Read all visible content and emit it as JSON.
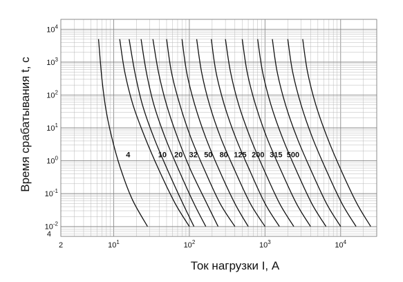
{
  "chart_data": {
    "type": "line",
    "title": "",
    "xlabel": "Ток нагрузки  I, А",
    "ylabel": "Время срабатывания  t, с",
    "x_scale": "log",
    "y_scale": "log",
    "xlim": [
      2,
      30000
    ],
    "ylim": [
      0.005,
      20000
    ],
    "grid": true,
    "x_ticks": [
      {
        "value": 2,
        "label": "2"
      },
      {
        "value": 10,
        "base": "10",
        "exp": "1"
      },
      {
        "value": 100,
        "base": "10",
        "exp": "2"
      },
      {
        "value": 1000,
        "base": "10",
        "exp": "3"
      },
      {
        "value": 10000,
        "base": "10",
        "exp": "4"
      }
    ],
    "y_ticks": [
      {
        "value": 0.01,
        "base": "10",
        "exp": "-2"
      },
      {
        "value": 0.1,
        "base": "10",
        "exp": "-1"
      },
      {
        "value": 1,
        "base": "10",
        "exp": "0"
      },
      {
        "value": 10,
        "base": "10",
        "exp": "1"
      },
      {
        "value": 100,
        "base": "10",
        "exp": "2"
      },
      {
        "value": 1000,
        "base": "10",
        "exp": "3"
      },
      {
        "value": 10000,
        "base": "10",
        "exp": "4"
      }
    ],
    "y_extra_label": {
      "value": 0.006,
      "label": "4"
    },
    "series": [
      {
        "name": "4",
        "points": [
          [
            6.3,
            5000
          ],
          [
            7,
            300
          ],
          [
            8,
            30
          ],
          [
            10,
            3
          ],
          [
            13,
            0.4
          ],
          [
            18,
            0.06
          ],
          [
            28,
            0.01
          ]
        ]
      },
      {
        "name": "10",
        "points": [
          [
            12,
            5000
          ],
          [
            14,
            500
          ],
          [
            18,
            50
          ],
          [
            26,
            5
          ],
          [
            40,
            0.5
          ],
          [
            65,
            0.05
          ],
          [
            100,
            0.01
          ]
        ]
      },
      {
        "name": "20",
        "points": [
          [
            16,
            5000
          ],
          [
            19,
            500
          ],
          [
            24,
            50
          ],
          [
            34,
            5
          ],
          [
            52,
            0.5
          ],
          [
            82,
            0.05
          ],
          [
            115,
            0.01
          ]
        ]
      },
      {
        "name": "32",
        "points": [
          [
            23,
            5000
          ],
          [
            27,
            500
          ],
          [
            34,
            50
          ],
          [
            48,
            5
          ],
          [
            73,
            0.5
          ],
          [
            115,
            0.05
          ],
          [
            165,
            0.01
          ]
        ]
      },
      {
        "name": "50",
        "points": [
          [
            33,
            5000
          ],
          [
            39,
            500
          ],
          [
            50,
            50
          ],
          [
            70,
            5
          ],
          [
            105,
            0.5
          ],
          [
            170,
            0.05
          ],
          [
            240,
            0.01
          ]
        ]
      },
      {
        "name": "80",
        "points": [
          [
            50,
            5000
          ],
          [
            58,
            500
          ],
          [
            75,
            50
          ],
          [
            105,
            5
          ],
          [
            160,
            0.5
          ],
          [
            255,
            0.05
          ],
          [
            400,
            0.01
          ]
        ]
      },
      {
        "name": "125",
        "points": [
          [
            80,
            5000
          ],
          [
            92,
            500
          ],
          [
            118,
            50
          ],
          [
            165,
            5
          ],
          [
            250,
            0.5
          ],
          [
            400,
            0.05
          ],
          [
            600,
            0.01
          ]
        ]
      },
      {
        "name": "200",
        "points": [
          [
            125,
            5000
          ],
          [
            145,
            500
          ],
          [
            185,
            50
          ],
          [
            260,
            5
          ],
          [
            400,
            0.5
          ],
          [
            640,
            0.05
          ],
          [
            1000,
            0.01
          ]
        ]
      },
      {
        "name": "315",
        "points": [
          [
            195,
            5000
          ],
          [
            225,
            500
          ],
          [
            290,
            50
          ],
          [
            410,
            5
          ],
          [
            630,
            0.5
          ],
          [
            1000,
            0.05
          ],
          [
            1550,
            0.01
          ]
        ]
      },
      {
        "name": "500",
        "points": [
          [
            300,
            5000
          ],
          [
            350,
            500
          ],
          [
            450,
            50
          ],
          [
            640,
            5
          ],
          [
            980,
            0.5
          ],
          [
            1560,
            0.05
          ],
          [
            2400,
            0.01
          ]
        ]
      },
      {
        "name": "",
        "points": [
          [
            500,
            5000
          ],
          [
            580,
            500
          ],
          [
            750,
            50
          ],
          [
            1060,
            5
          ],
          [
            1630,
            0.5
          ],
          [
            2600,
            0.05
          ],
          [
            4000,
            0.01
          ]
        ]
      },
      {
        "name": "",
        "points": [
          [
            800,
            5000
          ],
          [
            930,
            500
          ],
          [
            1200,
            50
          ],
          [
            1700,
            5
          ],
          [
            2600,
            0.5
          ],
          [
            4150,
            0.05
          ],
          [
            6400,
            0.01
          ]
        ]
      },
      {
        "name": "",
        "points": [
          [
            1250,
            5000
          ],
          [
            1450,
            500
          ],
          [
            1870,
            50
          ],
          [
            2650,
            5
          ],
          [
            4070,
            0.5
          ],
          [
            6500,
            0.05
          ],
          [
            10000,
            0.01
          ]
        ]
      },
      {
        "name": "",
        "points": [
          [
            2000,
            5000
          ],
          [
            2320,
            500
          ],
          [
            3000,
            50
          ],
          [
            4240,
            5
          ],
          [
            6500,
            0.5
          ],
          [
            10400,
            0.05
          ],
          [
            16000,
            0.01
          ]
        ]
      },
      {
        "name": "",
        "points": [
          [
            3150,
            5000
          ],
          [
            3650,
            500
          ],
          [
            4700,
            50
          ],
          [
            6680,
            5
          ],
          [
            10200,
            0.5
          ],
          [
            16400,
            0.05
          ],
          [
            25000,
            0.01
          ]
        ]
      }
    ],
    "curve_labels": [
      {
        "text": "4",
        "x": 15.5,
        "y": 1.55
      },
      {
        "text": "10",
        "x": 44,
        "y": 1.55
      },
      {
        "text": "20",
        "x": 72,
        "y": 1.55
      },
      {
        "text": "32",
        "x": 113,
        "y": 1.55
      },
      {
        "text": "50",
        "x": 178,
        "y": 1.55
      },
      {
        "text": "80",
        "x": 285,
        "y": 1.55
      },
      {
        "text": "125",
        "x": 470,
        "y": 1.55
      },
      {
        "text": "200",
        "x": 810,
        "y": 1.55
      },
      {
        "text": "315",
        "x": 1400,
        "y": 1.55
      },
      {
        "text": "500",
        "x": 2350,
        "y": 1.55
      }
    ]
  }
}
